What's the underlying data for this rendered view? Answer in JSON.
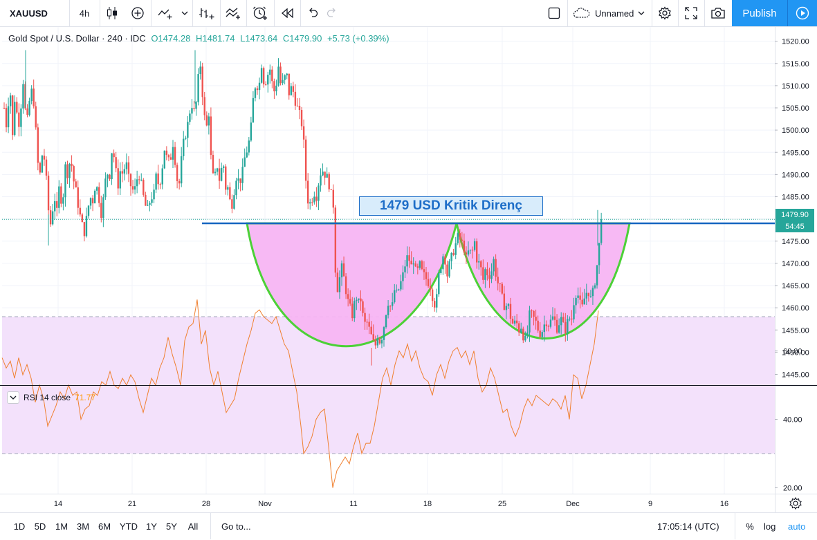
{
  "toolbar": {
    "symbol": "XAUUSD",
    "interval": "4h",
    "layout_name": "Unnamed",
    "publish_label": "Publish"
  },
  "legend": {
    "symbol_desc": "Gold Spot / U.S. Dollar · 240 · IDC",
    "open": "O1474.28",
    "high": "H1481.74",
    "low": "L1473.64",
    "close": "C1479.90",
    "change": "+5.73 (+0.39%)"
  },
  "annotation": {
    "text": "1479 USD Kritik Direnç"
  },
  "price_axis": {
    "labels": [
      "1520.00",
      "1515.00",
      "1510.00",
      "1505.00",
      "1500.00",
      "1495.00",
      "1490.00",
      "1485.00",
      "1475.00",
      "1470.00",
      "1465.00",
      "1460.00",
      "1455.00",
      "1450.00",
      "1445.00"
    ],
    "current_price": "1479.90",
    "countdown": "54:45"
  },
  "rsi": {
    "label": "RSI 14 close",
    "value": "71.77",
    "axis_labels": [
      "60.00",
      "40.00",
      "20.00"
    ]
  },
  "time_axis": {
    "labels": [
      "14",
      "21",
      "28",
      "Nov",
      "11",
      "18",
      "25",
      "Dec",
      "9",
      "16"
    ]
  },
  "bottombar": {
    "ranges": [
      "1D",
      "5D",
      "1M",
      "3M",
      "6M",
      "YTD",
      "1Y",
      "5Y",
      "All"
    ],
    "goto_label": "Go to...",
    "clock": "17:05:14 (UTC)",
    "percent_label": "%",
    "log_label": "log",
    "auto_label": "auto"
  },
  "colors": {
    "up": "#26a69a",
    "down": "#ef5350",
    "resistance_line": "#1565c0",
    "cup_fill": "#f7b5f3",
    "cup_stroke": "#4cd137",
    "rsi_line": "#f08030",
    "rsi_band": "#f3e1fb"
  },
  "chart_data": {
    "type": "candlestick",
    "x_axis": [
      "14",
      "21",
      "28",
      "Nov",
      "11",
      "18",
      "25",
      "Dec",
      "9",
      "16"
    ],
    "y_range": [
      1443,
      1523
    ],
    "resistance": 1479,
    "path_closes": [
      [
        0,
        1505
      ],
      [
        4,
        1500
      ],
      [
        8,
        1512
      ],
      [
        12,
        1498
      ],
      [
        16,
        1509
      ],
      [
        20,
        1500
      ],
      [
        24,
        1505
      ],
      [
        28,
        1512
      ],
      [
        32,
        1500
      ],
      [
        36,
        1506
      ],
      [
        40,
        1509
      ],
      [
        44,
        1505
      ],
      [
        48,
        1493
      ],
      [
        52,
        1490
      ],
      [
        56,
        1496
      ],
      [
        60,
        1491
      ],
      [
        64,
        1482
      ],
      [
        68,
        1478
      ],
      [
        72,
        1486
      ],
      [
        76,
        1481
      ],
      [
        80,
        1488
      ],
      [
        84,
        1482
      ],
      [
        88,
        1492
      ],
      [
        92,
        1490
      ],
      [
        96,
        1494
      ],
      [
        100,
        1489
      ],
      [
        104,
        1486
      ],
      [
        108,
        1482
      ],
      [
        112,
        1479
      ],
      [
        116,
        1477
      ],
      [
        120,
        1481
      ],
      [
        124,
        1485
      ],
      [
        128,
        1484
      ],
      [
        132,
        1488
      ],
      [
        136,
        1486
      ],
      [
        140,
        1481
      ],
      [
        144,
        1485
      ],
      [
        148,
        1491
      ],
      [
        152,
        1489
      ],
      [
        156,
        1496
      ],
      [
        160,
        1493
      ],
      [
        164,
        1487
      ],
      [
        168,
        1491
      ],
      [
        172,
        1490
      ],
      [
        176,
        1493
      ],
      [
        180,
        1489
      ],
      [
        184,
        1487
      ],
      [
        188,
        1486
      ],
      [
        192,
        1489
      ],
      [
        196,
        1490
      ],
      [
        200,
        1486
      ],
      [
        204,
        1483
      ],
      [
        208,
        1482
      ],
      [
        212,
        1485
      ],
      [
        216,
        1485
      ],
      [
        220,
        1490
      ],
      [
        224,
        1487
      ],
      [
        228,
        1491
      ],
      [
        232,
        1496
      ],
      [
        236,
        1493
      ],
      [
        240,
        1493
      ],
      [
        244,
        1497
      ],
      [
        248,
        1492
      ],
      [
        252,
        1486
      ],
      [
        256,
        1493
      ],
      [
        260,
        1498
      ],
      [
        264,
        1500
      ],
      [
        268,
        1504
      ],
      [
        272,
        1506
      ],
      [
        276,
        1503
      ],
      [
        280,
        1511
      ],
      [
        284,
        1515
      ],
      [
        288,
        1505
      ],
      [
        292,
        1500
      ],
      [
        296,
        1504
      ],
      [
        300,
        1490
      ],
      [
        304,
        1489
      ],
      [
        308,
        1492
      ],
      [
        312,
        1488
      ],
      [
        316,
        1494
      ],
      [
        320,
        1487
      ],
      [
        324,
        1487
      ],
      [
        328,
        1482
      ],
      [
        332,
        1486
      ],
      [
        336,
        1490
      ],
      [
        340,
        1488
      ],
      [
        344,
        1490
      ],
      [
        348,
        1494
      ],
      [
        352,
        1496
      ],
      [
        356,
        1499
      ],
      [
        360,
        1507
      ],
      [
        364,
        1511
      ],
      [
        368,
        1509
      ],
      [
        372,
        1515
      ],
      [
        376,
        1510
      ],
      [
        380,
        1512
      ],
      [
        384,
        1514
      ],
      [
        388,
        1510
      ],
      [
        392,
        1508
      ],
      [
        396,
        1515
      ],
      [
        400,
        1510
      ],
      [
        404,
        1511
      ],
      [
        408,
        1513
      ],
      [
        412,
        1508
      ],
      [
        416,
        1510
      ],
      [
        420,
        1507
      ],
      [
        424,
        1505
      ],
      [
        428,
        1503
      ],
      [
        432,
        1500
      ],
      [
        436,
        1489
      ],
      [
        440,
        1483
      ],
      [
        444,
        1484
      ],
      [
        448,
        1486
      ],
      [
        452,
        1485
      ],
      [
        456,
        1490
      ],
      [
        460,
        1491
      ],
      [
        464,
        1490
      ],
      [
        468,
        1489
      ],
      [
        472,
        1486
      ],
      [
        476,
        1483
      ],
      [
        480,
        1463
      ],
      [
        484,
        1466
      ],
      [
        488,
        1469
      ],
      [
        492,
        1466
      ],
      [
        496,
        1462
      ],
      [
        500,
        1460
      ],
      [
        504,
        1458
      ],
      [
        508,
        1463
      ],
      [
        512,
        1461
      ],
      [
        516,
        1462
      ],
      [
        520,
        1456
      ],
      [
        524,
        1457
      ],
      [
        528,
        1455
      ],
      [
        532,
        1453
      ],
      [
        536,
        1451
      ],
      [
        540,
        1454
      ],
      [
        544,
        1452
      ],
      [
        548,
        1455
      ],
      [
        552,
        1459
      ],
      [
        556,
        1462
      ],
      [
        560,
        1459
      ],
      [
        564,
        1464
      ],
      [
        568,
        1463
      ],
      [
        572,
        1465
      ],
      [
        576,
        1467
      ],
      [
        580,
        1470
      ],
      [
        584,
        1472
      ],
      [
        588,
        1469
      ],
      [
        592,
        1471
      ],
      [
        596,
        1467
      ],
      [
        600,
        1470
      ],
      [
        604,
        1468
      ],
      [
        608,
        1467
      ],
      [
        612,
        1466
      ],
      [
        616,
        1465
      ],
      [
        620,
        1462
      ],
      [
        624,
        1460
      ],
      [
        628,
        1467
      ],
      [
        632,
        1470
      ],
      [
        636,
        1473
      ],
      [
        640,
        1467
      ],
      [
        644,
        1470
      ],
      [
        648,
        1472
      ],
      [
        652,
        1474
      ],
      [
        656,
        1476
      ],
      [
        660,
        1475
      ],
      [
        664,
        1474
      ],
      [
        668,
        1471
      ],
      [
        672,
        1473
      ],
      [
        676,
        1472
      ],
      [
        680,
        1475
      ],
      [
        684,
        1470
      ],
      [
        688,
        1470
      ],
      [
        692,
        1466
      ],
      [
        696,
        1469
      ],
      [
        700,
        1467
      ],
      [
        704,
        1468
      ],
      [
        708,
        1471
      ],
      [
        712,
        1466
      ],
      [
        716,
        1465
      ],
      [
        720,
        1462
      ],
      [
        724,
        1460
      ],
      [
        728,
        1461
      ],
      [
        732,
        1458
      ],
      [
        736,
        1456
      ],
      [
        740,
        1457
      ],
      [
        744,
        1455
      ],
      [
        748,
        1456
      ],
      [
        752,
        1452
      ],
      [
        756,
        1454
      ],
      [
        760,
        1459
      ],
      [
        764,
        1458
      ],
      [
        768,
        1457
      ],
      [
        772,
        1455
      ],
      [
        776,
        1454
      ],
      [
        780,
        1456
      ],
      [
        784,
        1457
      ],
      [
        788,
        1456
      ],
      [
        792,
        1458
      ],
      [
        796,
        1457
      ],
      [
        800,
        1455
      ],
      [
        804,
        1458
      ],
      [
        808,
        1456
      ],
      [
        812,
        1455
      ],
      [
        816,
        1458
      ],
      [
        820,
        1457
      ],
      [
        824,
        1462
      ],
      [
        828,
        1464
      ],
      [
        832,
        1461
      ],
      [
        836,
        1460
      ],
      [
        840,
        1463
      ],
      [
        844,
        1464
      ],
      [
        848,
        1462
      ],
      [
        852,
        1464
      ],
      [
        856,
        1468
      ],
      [
        860,
        1474
      ],
      [
        864,
        1479.9
      ]
    ],
    "rsi_path": [
      [
        0,
        58
      ],
      [
        6,
        55
      ],
      [
        12,
        57
      ],
      [
        18,
        52
      ],
      [
        24,
        58
      ],
      [
        30,
        53
      ],
      [
        36,
        56
      ],
      [
        42,
        52
      ],
      [
        48,
        45
      ],
      [
        54,
        50
      ],
      [
        60,
        46
      ],
      [
        66,
        38
      ],
      [
        72,
        41
      ],
      [
        78,
        44
      ],
      [
        84,
        48
      ],
      [
        90,
        46
      ],
      [
        96,
        50
      ],
      [
        102,
        47
      ],
      [
        108,
        48
      ],
      [
        114,
        40
      ],
      [
        120,
        43
      ],
      [
        126,
        44
      ],
      [
        132,
        48
      ],
      [
        138,
        47
      ],
      [
        144,
        51
      ],
      [
        150,
        50
      ],
      [
        156,
        54
      ],
      [
        162,
        50
      ],
      [
        168,
        49
      ],
      [
        174,
        52
      ],
      [
        180,
        50
      ],
      [
        186,
        53
      ],
      [
        192,
        51
      ],
      [
        198,
        46
      ],
      [
        204,
        42
      ],
      [
        210,
        47
      ],
      [
        216,
        52
      ],
      [
        222,
        50
      ],
      [
        228,
        55
      ],
      [
        234,
        58
      ],
      [
        240,
        64
      ],
      [
        246,
        59
      ],
      [
        252,
        55
      ],
      [
        258,
        50
      ],
      [
        264,
        63
      ],
      [
        270,
        67
      ],
      [
        276,
        68
      ],
      [
        282,
        75
      ],
      [
        288,
        62
      ],
      [
        294,
        66
      ],
      [
        300,
        55
      ],
      [
        306,
        50
      ],
      [
        312,
        54
      ],
      [
        318,
        48
      ],
      [
        324,
        42
      ],
      [
        330,
        44
      ],
      [
        336,
        46
      ],
      [
        342,
        52
      ],
      [
        348,
        57
      ],
      [
        354,
        62
      ],
      [
        360,
        66
      ],
      [
        366,
        71
      ],
      [
        372,
        72
      ],
      [
        378,
        70
      ],
      [
        384,
        69
      ],
      [
        390,
        68
      ],
      [
        396,
        70
      ],
      [
        402,
        66
      ],
      [
        408,
        62
      ],
      [
        414,
        60
      ],
      [
        420,
        54
      ],
      [
        426,
        48
      ],
      [
        432,
        38
      ],
      [
        436,
        30
      ],
      [
        442,
        32
      ],
      [
        448,
        35
      ],
      [
        454,
        40
      ],
      [
        460,
        42
      ],
      [
        466,
        43
      ],
      [
        472,
        32
      ],
      [
        478,
        20
      ],
      [
        484,
        25
      ],
      [
        490,
        27
      ],
      [
        496,
        29
      ],
      [
        502,
        27
      ],
      [
        508,
        32
      ],
      [
        514,
        36
      ],
      [
        520,
        30
      ],
      [
        526,
        33
      ],
      [
        532,
        33
      ],
      [
        538,
        38
      ],
      [
        544,
        45
      ],
      [
        550,
        52
      ],
      [
        556,
        55
      ],
      [
        562,
        50
      ],
      [
        568,
        56
      ],
      [
        574,
        60
      ],
      [
        580,
        58
      ],
      [
        586,
        62
      ],
      [
        592,
        57
      ],
      [
        598,
        60
      ],
      [
        604,
        55
      ],
      [
        610,
        52
      ],
      [
        616,
        51
      ],
      [
        622,
        47
      ],
      [
        628,
        53
      ],
      [
        634,
        56
      ],
      [
        640,
        52
      ],
      [
        646,
        57
      ],
      [
        652,
        60
      ],
      [
        658,
        61
      ],
      [
        664,
        58
      ],
      [
        670,
        60
      ],
      [
        676,
        56
      ],
      [
        682,
        60
      ],
      [
        688,
        52
      ],
      [
        694,
        48
      ],
      [
        700,
        50
      ],
      [
        706,
        55
      ],
      [
        712,
        52
      ],
      [
        718,
        47
      ],
      [
        724,
        42
      ],
      [
        730,
        43
      ],
      [
        736,
        38
      ],
      [
        742,
        35
      ],
      [
        748,
        38
      ],
      [
        754,
        43
      ],
      [
        760,
        46
      ],
      [
        766,
        44
      ],
      [
        772,
        47
      ],
      [
        778,
        46
      ],
      [
        784,
        45
      ],
      [
        790,
        44
      ],
      [
        796,
        46
      ],
      [
        802,
        45
      ],
      [
        808,
        43
      ],
      [
        814,
        47
      ],
      [
        820,
        40
      ],
      [
        826,
        53
      ],
      [
        832,
        52
      ],
      [
        838,
        46
      ],
      [
        844,
        50
      ],
      [
        850,
        56
      ],
      [
        856,
        62
      ],
      [
        862,
        71.77
      ]
    ]
  }
}
